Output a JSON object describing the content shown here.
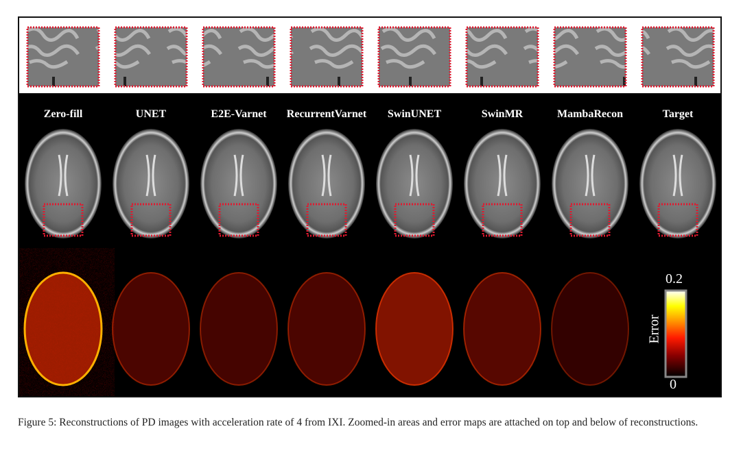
{
  "figure": {
    "columns": [
      "Zero-fill",
      "UNET",
      "E2E-Varnet",
      "RecurrentVarnet",
      "SwinUNET",
      "SwinMR",
      "MambaRecon",
      "Target"
    ],
    "error_intensity": [
      1.0,
      0.35,
      0.3,
      0.35,
      0.8,
      0.45,
      0.15,
      0
    ],
    "colorbar": {
      "title": "Error",
      "max_label": "0.2",
      "min_label": "0",
      "colormap": [
        "#000000",
        "#8b0000",
        "#ff1a00",
        "#ff9900",
        "#ffff00",
        "#ffffff"
      ]
    },
    "zoom_box_color": "#e0192f"
  },
  "caption": {
    "text": "Figure 5: Reconstructions of PD images with acceleration rate of 4 from IXI. Zoomed-in areas and error maps are attached on top and below of reconstructions."
  }
}
